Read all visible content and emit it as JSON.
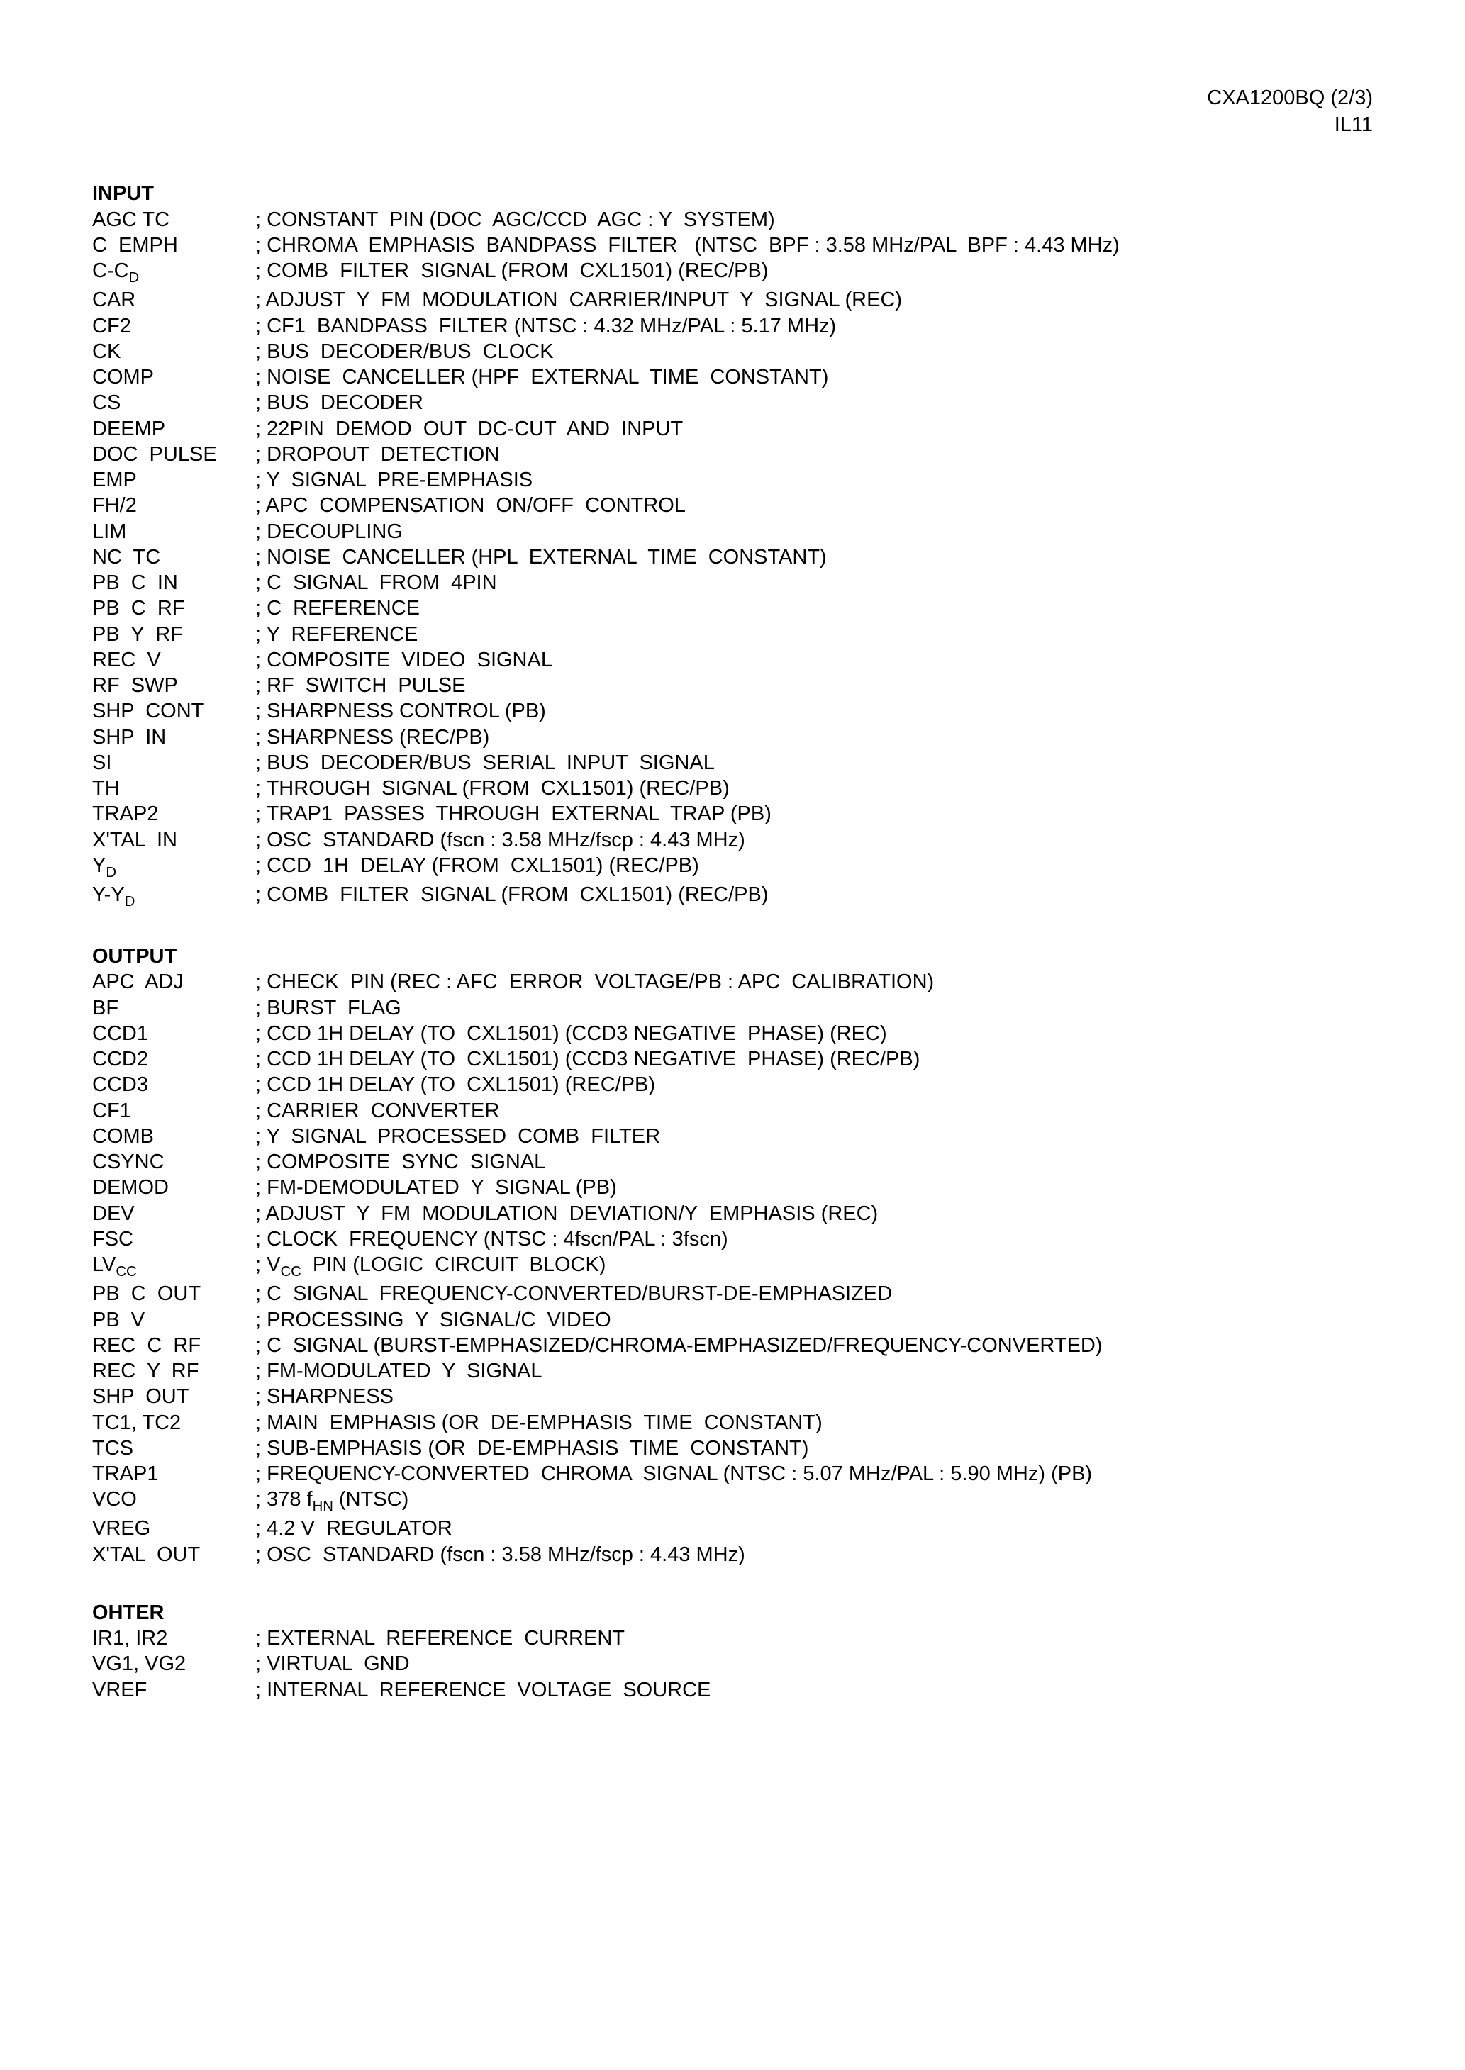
{
  "header": {
    "line1": "CXA1200BQ (2/3)",
    "line2": "IL11"
  },
  "sections": [
    {
      "title": "INPUT",
      "rows": [
        {
          "label": "AGC TC",
          "desc": "; CONSTANT  PIN (DOC  AGC/CCD  AGC : Y  SYSTEM)"
        },
        {
          "label": "C  EMPH",
          "desc": "; CHROMA  EMPHASIS  BANDPASS  FILTER   (NTSC  BPF : 3.58 MHz/PAL  BPF : 4.43 MHz)"
        },
        {
          "label_html": "C-C<span class='sub'>D</span>",
          "desc": "; COMB  FILTER  SIGNAL (FROM  CXL1501) (REC/PB)"
        },
        {
          "label": "CAR",
          "desc": "; ADJUST  Y  FM  MODULATION  CARRIER/INPUT  Y  SIGNAL (REC)"
        },
        {
          "label": "CF2",
          "desc": "; CF1  BANDPASS  FILTER (NTSC : 4.32 MHz/PAL : 5.17 MHz)"
        },
        {
          "label": "CK",
          "desc": "; BUS  DECODER/BUS  CLOCK"
        },
        {
          "label": "COMP",
          "desc": "; NOISE  CANCELLER (HPF  EXTERNAL  TIME  CONSTANT)"
        },
        {
          "label": "CS",
          "desc": "; BUS  DECODER"
        },
        {
          "label": "DEEMP",
          "desc": "; 22PIN  DEMOD  OUT  DC-CUT  AND  INPUT"
        },
        {
          "label": "DOC  PULSE",
          "desc": "; DROPOUT  DETECTION"
        },
        {
          "label": "EMP",
          "desc": "; Y  SIGNAL  PRE-EMPHASIS"
        },
        {
          "label": "FH/2",
          "desc": "; APC  COMPENSATION  ON/OFF  CONTROL"
        },
        {
          "label": "LIM",
          "desc": "; DECOUPLING"
        },
        {
          "label": "NC  TC",
          "desc": "; NOISE  CANCELLER (HPL  EXTERNAL  TIME  CONSTANT)"
        },
        {
          "label": "PB  C  IN",
          "desc": "; C  SIGNAL  FROM  4PIN"
        },
        {
          "label": "PB  C  RF",
          "desc": "; C  REFERENCE"
        },
        {
          "label": "PB  Y  RF",
          "desc": "; Y  REFERENCE"
        },
        {
          "label": "REC  V",
          "desc": "; COMPOSITE  VIDEO  SIGNAL"
        },
        {
          "label": "RF  SWP",
          "desc": "; RF  SWITCH  PULSE"
        },
        {
          "label": "SHP  CONT",
          "desc": "; SHARPNESS CONTROL (PB)"
        },
        {
          "label": "SHP  IN",
          "desc": "; SHARPNESS (REC/PB)"
        },
        {
          "label": "SI",
          "desc": "; BUS  DECODER/BUS  SERIAL  INPUT  SIGNAL"
        },
        {
          "label": "TH",
          "desc": "; THROUGH  SIGNAL (FROM  CXL1501) (REC/PB)"
        },
        {
          "label": "TRAP2",
          "desc": "; TRAP1  PASSES  THROUGH  EXTERNAL  TRAP (PB)"
        },
        {
          "label": "X'TAL  IN",
          "desc": "; OSC  STANDARD (fscn : 3.58 MHz/fscp : 4.43 MHz)"
        },
        {
          "label_html": "Y<span class='sub'>D</span>",
          "desc": "; CCD  1H  DELAY (FROM  CXL1501) (REC/PB)"
        },
        {
          "label_html": "Y-Y<span class='sub'>D</span>",
          "desc": "; COMB  FILTER  SIGNAL (FROM  CXL1501) (REC/PB)"
        }
      ]
    },
    {
      "title": "OUTPUT",
      "rows": [
        {
          "label": "APC  ADJ",
          "desc": "; CHECK  PIN (REC : AFC  ERROR  VOLTAGE/PB : APC  CALIBRATION)"
        },
        {
          "label": "BF",
          "desc": "; BURST  FLAG"
        },
        {
          "label": "CCD1",
          "desc": "; CCD 1H DELAY (TO  CXL1501) (CCD3 NEGATIVE  PHASE) (REC)"
        },
        {
          "label": "CCD2",
          "desc": "; CCD 1H DELAY (TO  CXL1501) (CCD3 NEGATIVE  PHASE) (REC/PB)"
        },
        {
          "label": "CCD3",
          "desc": "; CCD 1H DELAY (TO  CXL1501) (REC/PB)"
        },
        {
          "label": "CF1",
          "desc": "; CARRIER  CONVERTER"
        },
        {
          "label": "COMB",
          "desc": "; Y  SIGNAL  PROCESSED  COMB  FILTER"
        },
        {
          "label": "CSYNC",
          "desc": "; COMPOSITE  SYNC  SIGNAL"
        },
        {
          "label": "DEMOD",
          "desc": "; FM-DEMODULATED  Y  SIGNAL (PB)"
        },
        {
          "label": "DEV",
          "desc": "; ADJUST  Y  FM  MODULATION  DEVIATION/Y  EMPHASIS (REC)"
        },
        {
          "label": "FSC",
          "desc": "; CLOCK  FREQUENCY (NTSC : 4fscn/PAL : 3fscn)"
        },
        {
          "label_html": "LV<span class='sub'>CC</span>",
          "desc_html": "; V<span class='sub'>CC</span>  PIN (LOGIC  CIRCUIT  BLOCK)"
        },
        {
          "label": "PB  C  OUT",
          "desc": "; C  SIGNAL  FREQUENCY-CONVERTED/BURST-DE-EMPHASIZED"
        },
        {
          "label": "PB  V",
          "desc": "; PROCESSING  Y  SIGNAL/C  VIDEO"
        },
        {
          "label": "REC  C  RF",
          "desc": "; C  SIGNAL (BURST-EMPHASIZED/CHROMA-EMPHASIZED/FREQUENCY-CONVERTED)"
        },
        {
          "label": "REC  Y  RF",
          "desc": "; FM-MODULATED  Y  SIGNAL"
        },
        {
          "label": "SHP  OUT",
          "desc": "; SHARPNESS"
        },
        {
          "label": "TC1, TC2",
          "desc": "; MAIN  EMPHASIS (OR  DE-EMPHASIS  TIME  CONSTANT)"
        },
        {
          "label": "TCS",
          "desc": "; SUB-EMPHASIS (OR  DE-EMPHASIS  TIME  CONSTANT)"
        },
        {
          "label": "TRAP1",
          "desc": "; FREQUENCY-CONVERTED  CHROMA  SIGNAL (NTSC : 5.07 MHz/PAL : 5.90 MHz) (PB)"
        },
        {
          "label": "VCO",
          "desc_html": "; 378 f<span class='sub'>HN</span> (NTSC)"
        },
        {
          "label": "VREG",
          "desc": "; 4.2 V  REGULATOR"
        },
        {
          "label": "X'TAL  OUT",
          "desc": "; OSC  STANDARD (fscn : 3.58 MHz/fscp : 4.43 MHz)"
        }
      ]
    },
    {
      "title": "OHTER",
      "rows": [
        {
          "label": "IR1, IR2",
          "desc": "; EXTERNAL  REFERENCE  CURRENT"
        },
        {
          "label": "VG1, VG2",
          "desc": "; VIRTUAL  GND"
        },
        {
          "label": "VREF",
          "desc": "; INTERNAL  REFERENCE  VOLTAGE  SOURCE"
        }
      ]
    }
  ]
}
